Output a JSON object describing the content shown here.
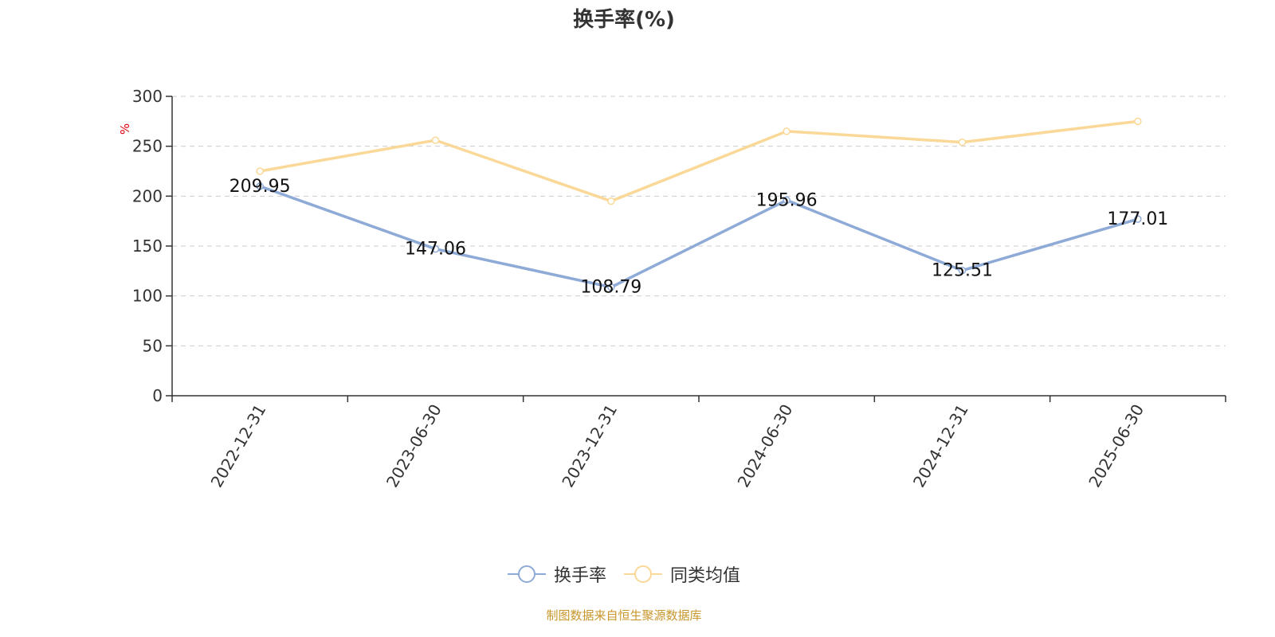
{
  "chart_data": {
    "type": "line",
    "title": "换手率(%)",
    "ylabel": "%",
    "ylim": [
      0,
      300
    ],
    "yticks": [
      0,
      50,
      100,
      150,
      200,
      250,
      300
    ],
    "grid": true,
    "legend_position": "bottom-center",
    "categories": [
      "2022-12-31",
      "2023-06-30",
      "2023-12-31",
      "2024-06-30",
      "2024-12-31",
      "2025-06-30"
    ],
    "series": [
      {
        "name": "换手率",
        "values": [
          209.95,
          147.06,
          108.79,
          195.96,
          125.51,
          177.01
        ],
        "color": "#8eaad6",
        "labels_shown": true
      },
      {
        "name": "同类均值",
        "values": [
          225,
          256,
          195,
          265,
          254,
          275
        ],
        "color": "#fad898",
        "labels_shown": false
      }
    ]
  },
  "footer": {
    "text": "制图数据来自恒生聚源数据库",
    "color": "#c8962b"
  }
}
